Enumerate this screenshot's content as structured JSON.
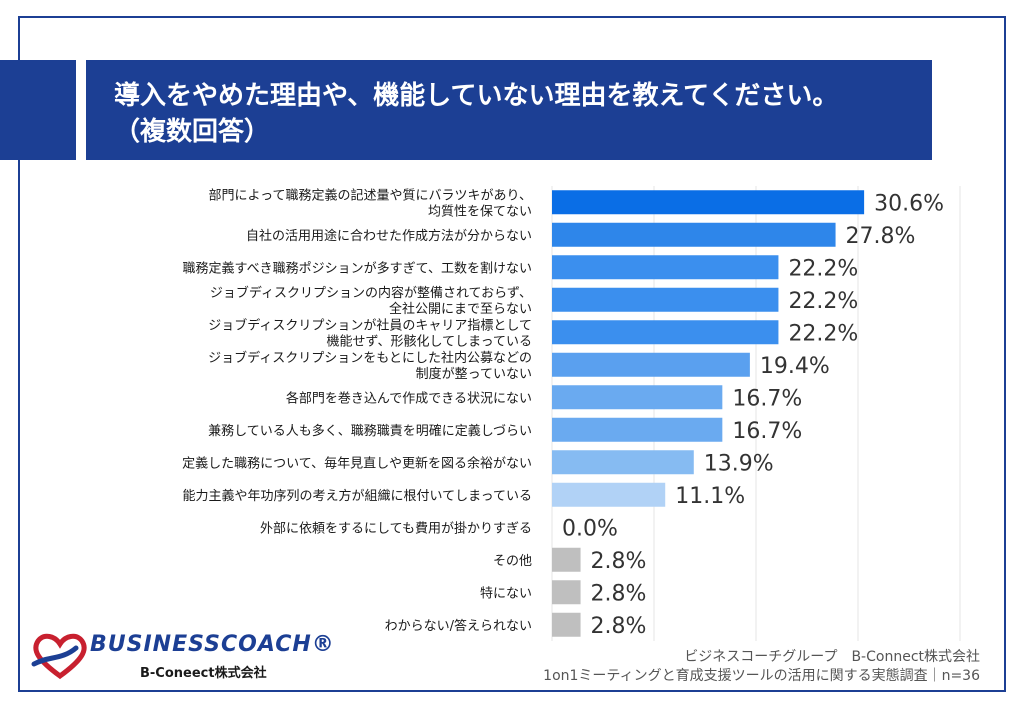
{
  "header": {
    "title_line1": "導入をやめた理由や、機能していない理由を教えてください。",
    "title_line2": "（複数回答）"
  },
  "chart_data": {
    "type": "bar",
    "orientation": "horizontal",
    "unit": "%",
    "categories": [
      [
        "部門によって職務定義の記述量や質にバラツキがあり、",
        "均質性を保てない"
      ],
      [
        "自社の活用用途に合わせた作成方法が分からない"
      ],
      [
        "職務定義すべき職務ポジションが多すぎて、工数を割けない"
      ],
      [
        "ジョブディスクリプションの内容が整備されておらず、",
        "全社公開にまで至らない"
      ],
      [
        "ジョブディスクリプションが社員のキャリア指標として",
        "機能せず、形骸化してしまっている"
      ],
      [
        "ジョブディスクリプションをもとにした社内公募などの",
        "制度が整っていない"
      ],
      [
        "各部門を巻き込んで作成できる状況にない"
      ],
      [
        "兼務している人も多く、職務職責を明確に定義しづらい"
      ],
      [
        "定義した職務について、毎年見直しや更新を図る余裕がない"
      ],
      [
        "能力主義や年功序列の考え方が組織に根付いてしまっている"
      ],
      [
        "外部に依頼をするにしても費用が掛かりすぎる"
      ],
      [
        "その他"
      ],
      [
        "特にない"
      ],
      [
        "わからない/答えられない"
      ]
    ],
    "values": [
      30.6,
      27.8,
      22.2,
      22.2,
      22.2,
      19.4,
      16.7,
      16.7,
      13.9,
      11.1,
      0.0,
      2.8,
      2.8,
      2.8
    ],
    "value_labels": [
      "30.6%",
      "27.8%",
      "22.2%",
      "22.2%",
      "22.2%",
      "19.4%",
      "16.7%",
      "16.7%",
      "13.9%",
      "11.1%",
      "0.0%",
      "2.8%",
      "2.8%",
      "2.8%"
    ],
    "bar_colors": [
      "#0a6ee6",
      "#2e86ea",
      "#3b8fee",
      "#3b8fee",
      "#3b8fee",
      "#5aa0ef",
      "#6aaaf0",
      "#6aaaf0",
      "#86bbf2",
      "#b1d2f6",
      "#b1d2f6",
      "#bfbfbf",
      "#bfbfbf",
      "#bfbfbf"
    ],
    "xlim": [
      0,
      36
    ],
    "grid": true,
    "xlabel": "",
    "ylabel": ""
  },
  "logo": {
    "name": "BUSINESSCOACH®",
    "sub": "B-Coneect株式会社"
  },
  "footer": {
    "line1": "ビジネスコーチグループ　B-Connect株式会社",
    "line2": "1on1ミーティングと育成支援ツールの活用に関する実態調査｜n=36"
  }
}
